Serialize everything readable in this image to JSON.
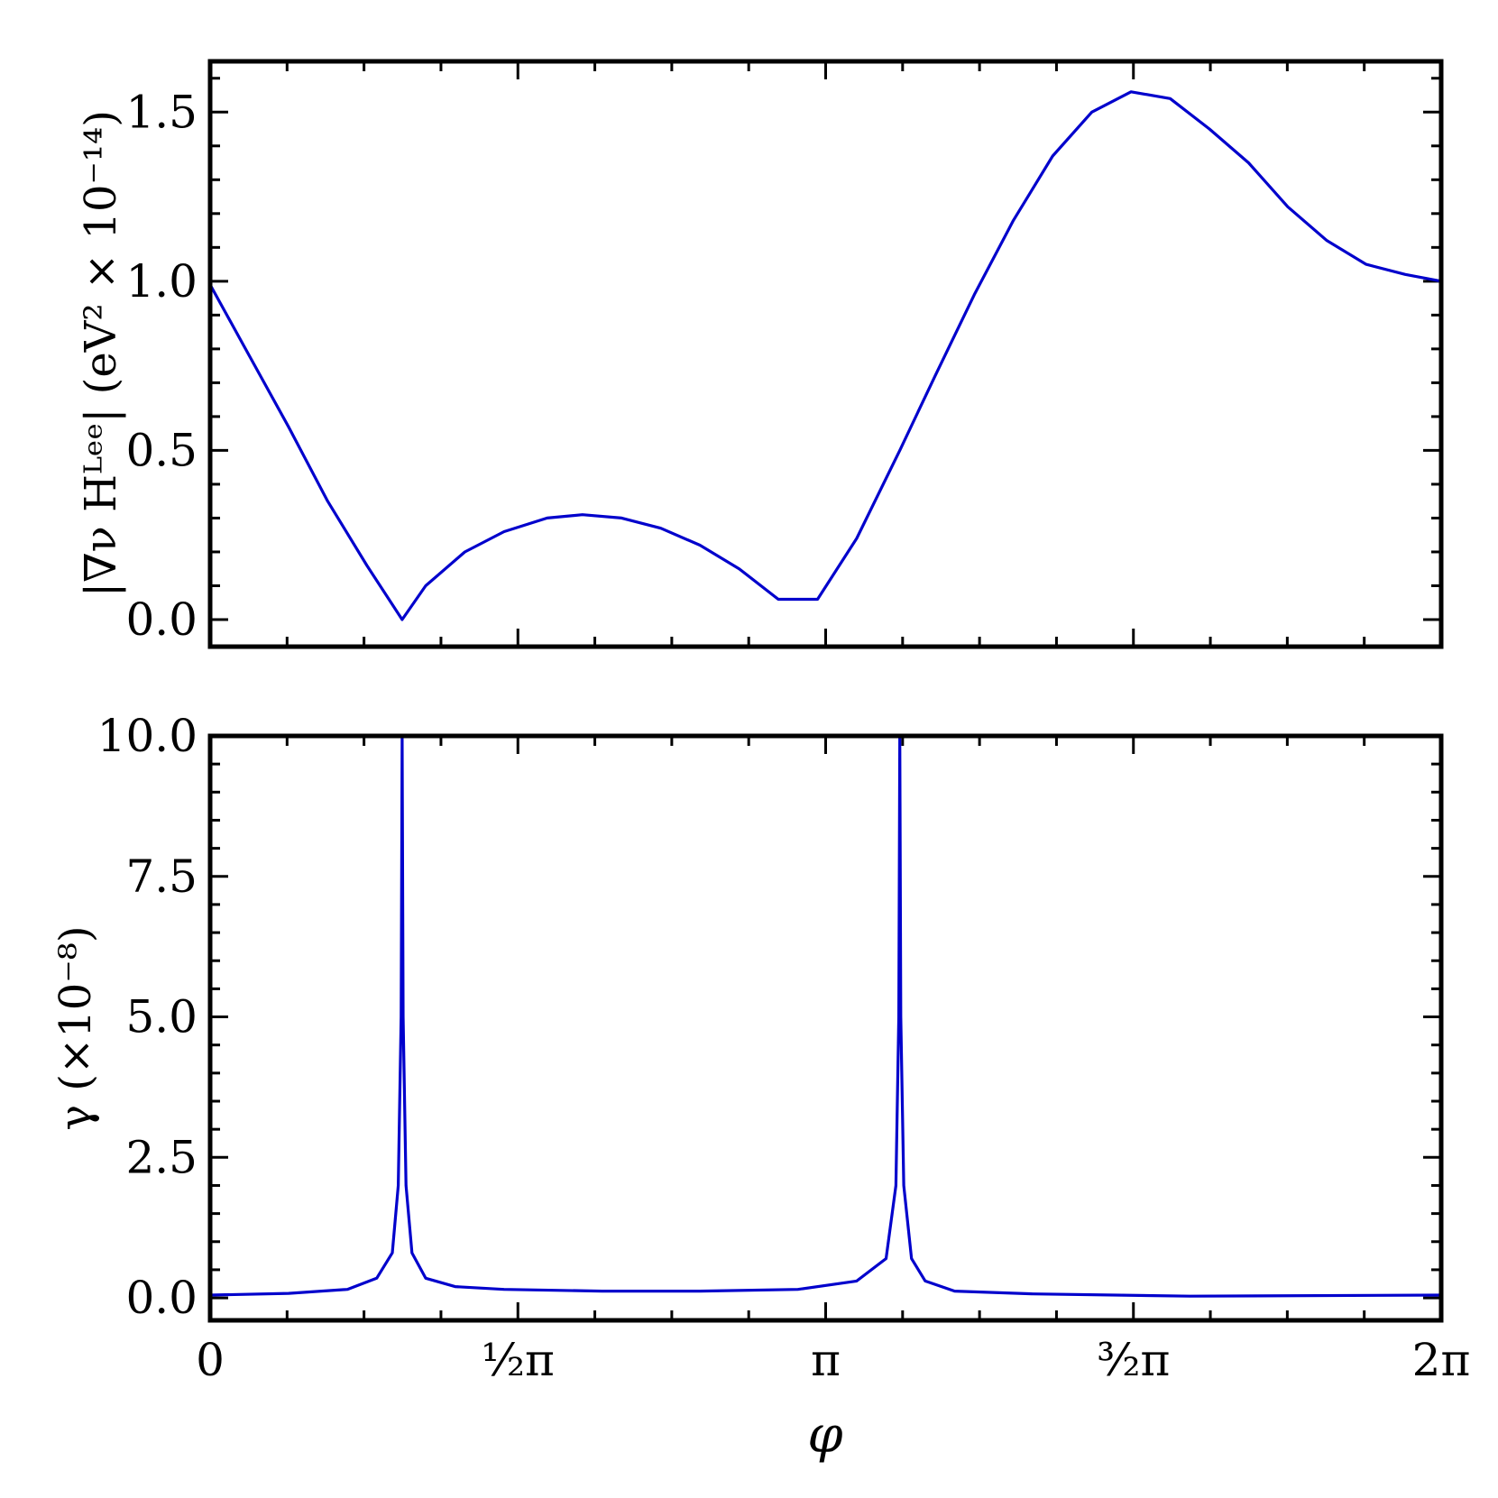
{
  "chart_data": [
    {
      "type": "line",
      "panel": "top",
      "ylabel": "|∇ν Hᴸᵉᵉ|  (eV² × 10⁻¹⁴)",
      "ylim": [
        -0.08,
        1.65
      ],
      "yticks": [
        {
          "value": 0.0,
          "label": "0.0"
        },
        {
          "value": 0.5,
          "label": "0.5"
        },
        {
          "value": 1.0,
          "label": "1.0"
        },
        {
          "value": 1.5,
          "label": "1.5"
        }
      ],
      "xlim": [
        0,
        6.2832
      ],
      "grid": false,
      "color": "#0000cc",
      "series": [
        {
          "x": [
            0,
            0.2,
            0.4,
            0.6,
            0.8,
            0.98,
            1.1,
            1.3,
            1.5,
            1.72,
            1.9,
            2.1,
            2.3,
            2.5,
            2.7,
            2.9,
            3.1,
            3.3,
            3.52,
            3.7,
            3.9,
            4.1,
            4.3,
            4.5,
            4.7,
            4.9,
            5.1,
            5.3,
            5.5,
            5.7,
            5.9,
            6.1,
            6.2832
          ],
          "y": [
            0.99,
            0.78,
            0.57,
            0.35,
            0.16,
            0.0,
            0.1,
            0.2,
            0.26,
            0.3,
            0.31,
            0.3,
            0.27,
            0.22,
            0.15,
            0.06,
            0.06,
            0.24,
            0.5,
            0.72,
            0.96,
            1.18,
            1.37,
            1.5,
            1.56,
            1.54,
            1.45,
            1.35,
            1.22,
            1.12,
            1.05,
            1.02,
            1.0
          ]
        }
      ]
    },
    {
      "type": "line",
      "panel": "bottom",
      "ylabel": "γ  (×10⁻⁸)",
      "xlabel": "φ",
      "ylim": [
        -0.4,
        10.0
      ],
      "yticks": [
        {
          "value": 0.0,
          "label": "0.0"
        },
        {
          "value": 2.5,
          "label": "2.5"
        },
        {
          "value": 5.0,
          "label": "5.0"
        },
        {
          "value": 7.5,
          "label": "7.5"
        },
        {
          "value": 10.0,
          "label": "10.0"
        }
      ],
      "xlim": [
        0,
        6.2832
      ],
      "xticks": [
        {
          "value": 0,
          "label": "0"
        },
        {
          "value": 1.5708,
          "label": "½π"
        },
        {
          "value": 3.1416,
          "label": "π"
        },
        {
          "value": 4.7124,
          "label": "³⁄₂π"
        },
        {
          "value": 6.2832,
          "label": "2π"
        }
      ],
      "grid": false,
      "color": "#0000cc",
      "series": [
        {
          "x": [
            0,
            0.4,
            0.7,
            0.85,
            0.93,
            0.96,
            0.975,
            0.98,
            0.985,
            1.0,
            1.03,
            1.1,
            1.25,
            1.5,
            2.0,
            2.5,
            3.0,
            3.3,
            3.45,
            3.5,
            3.515,
            3.52,
            3.525,
            3.54,
            3.58,
            3.65,
            3.8,
            4.2,
            5.0,
            6.2832
          ],
          "y": [
            0.05,
            0.08,
            0.15,
            0.35,
            0.8,
            2.0,
            5.0,
            10.0,
            5.0,
            2.0,
            0.8,
            0.35,
            0.2,
            0.15,
            0.12,
            0.12,
            0.15,
            0.3,
            0.7,
            2.0,
            5.0,
            10.0,
            5.0,
            2.0,
            0.7,
            0.3,
            0.12,
            0.07,
            0.03,
            0.05
          ]
        }
      ]
    }
  ]
}
